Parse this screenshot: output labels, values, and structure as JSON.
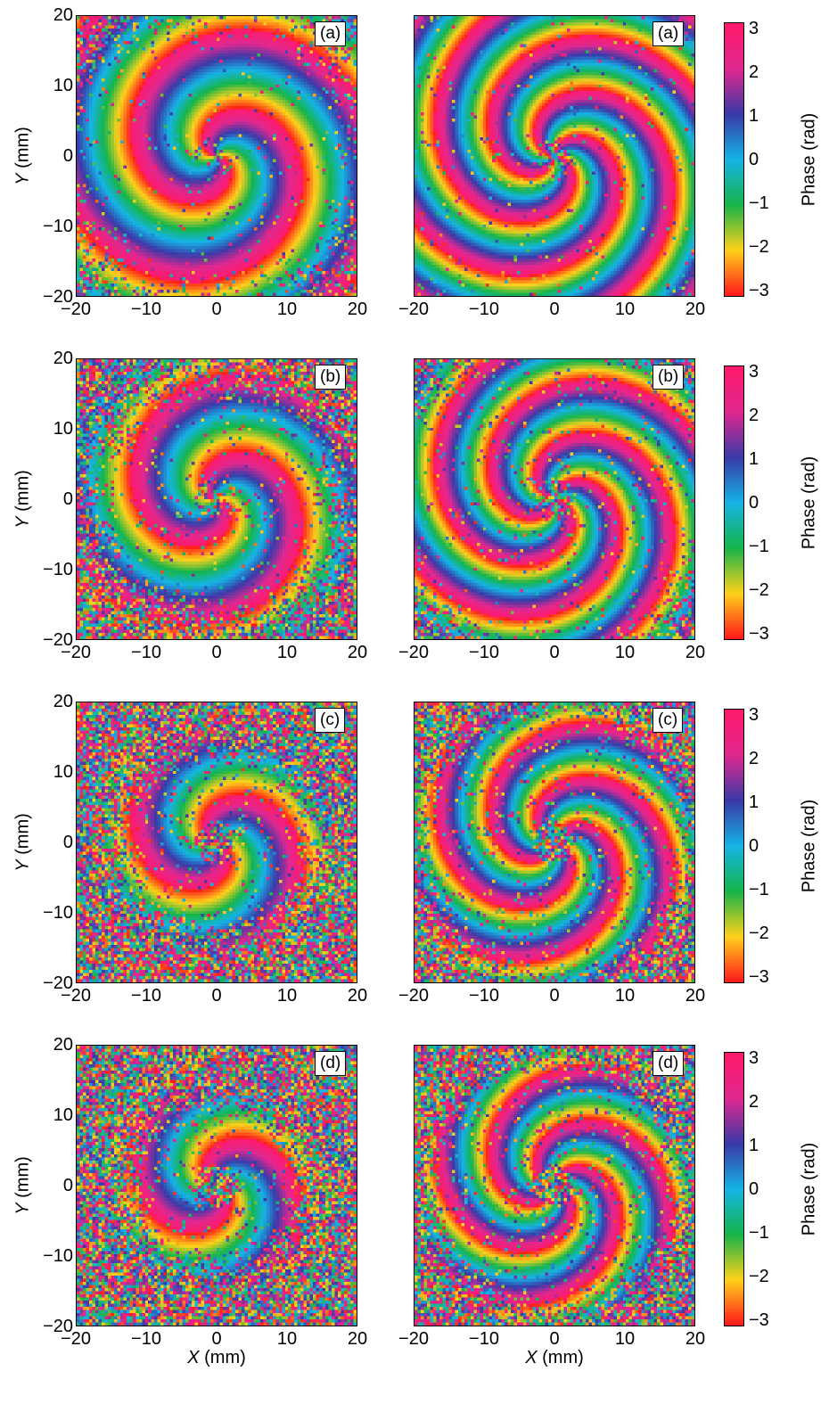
{
  "chart_data": {
    "type": "heatmap",
    "description_colormap": "hsv",
    "colors": [
      "#ff1a1a",
      "#ffd21a",
      "#15b54a",
      "#15b4e6",
      "#3a3aa8",
      "#e02890",
      "#ff1a6b"
    ],
    "axes": {
      "x_ticks": [
        "−20",
        "−10",
        "0",
        "10",
        "20"
      ],
      "y_ticks": [
        "20",
        "10",
        "0",
        "−10",
        "−20"
      ],
      "xlim": [
        -20,
        20
      ],
      "ylim": [
        -20,
        20
      ],
      "x_label_symbol": "X",
      "x_label_unit": " (mm)",
      "y_label_symbol": "Y",
      "y_label_unit": " (mm)"
    },
    "colorbar": {
      "label": "Phase (rad)",
      "ticks": [
        "3",
        "2",
        "1",
        "0",
        "−1",
        "−2",
        "−3"
      ],
      "tick_values": [
        3,
        2,
        1,
        0,
        -1,
        -2,
        -3
      ],
      "range": [
        -3.1416,
        3.1416
      ]
    },
    "rows": [
      {
        "panels": [
          {
            "label": "(a)",
            "arms": 2,
            "twist": 3.2,
            "radius": 17,
            "noise": 0.25
          },
          {
            "label": "(a)",
            "arms": 4,
            "twist": 4.6,
            "radius": 24,
            "noise": 0.25
          }
        ]
      },
      {
        "panels": [
          {
            "label": "(b)",
            "arms": 2,
            "twist": 3.2,
            "radius": 14,
            "noise": 0.45
          },
          {
            "label": "(b)",
            "arms": 4,
            "twist": 4.6,
            "radius": 20,
            "noise": 0.45
          }
        ]
      },
      {
        "panels": [
          {
            "label": "(c)",
            "arms": 2,
            "twist": 3.2,
            "radius": 11,
            "noise": 0.65
          },
          {
            "label": "(c)",
            "arms": 4,
            "twist": 4.6,
            "radius": 17,
            "noise": 0.65
          }
        ]
      },
      {
        "panels": [
          {
            "label": "(d)",
            "arms": 2,
            "twist": 3.2,
            "radius": 10,
            "noise": 0.8
          },
          {
            "label": "(d)",
            "arms": 4,
            "twist": 4.6,
            "radius": 16,
            "noise": 0.8
          }
        ]
      }
    ]
  }
}
